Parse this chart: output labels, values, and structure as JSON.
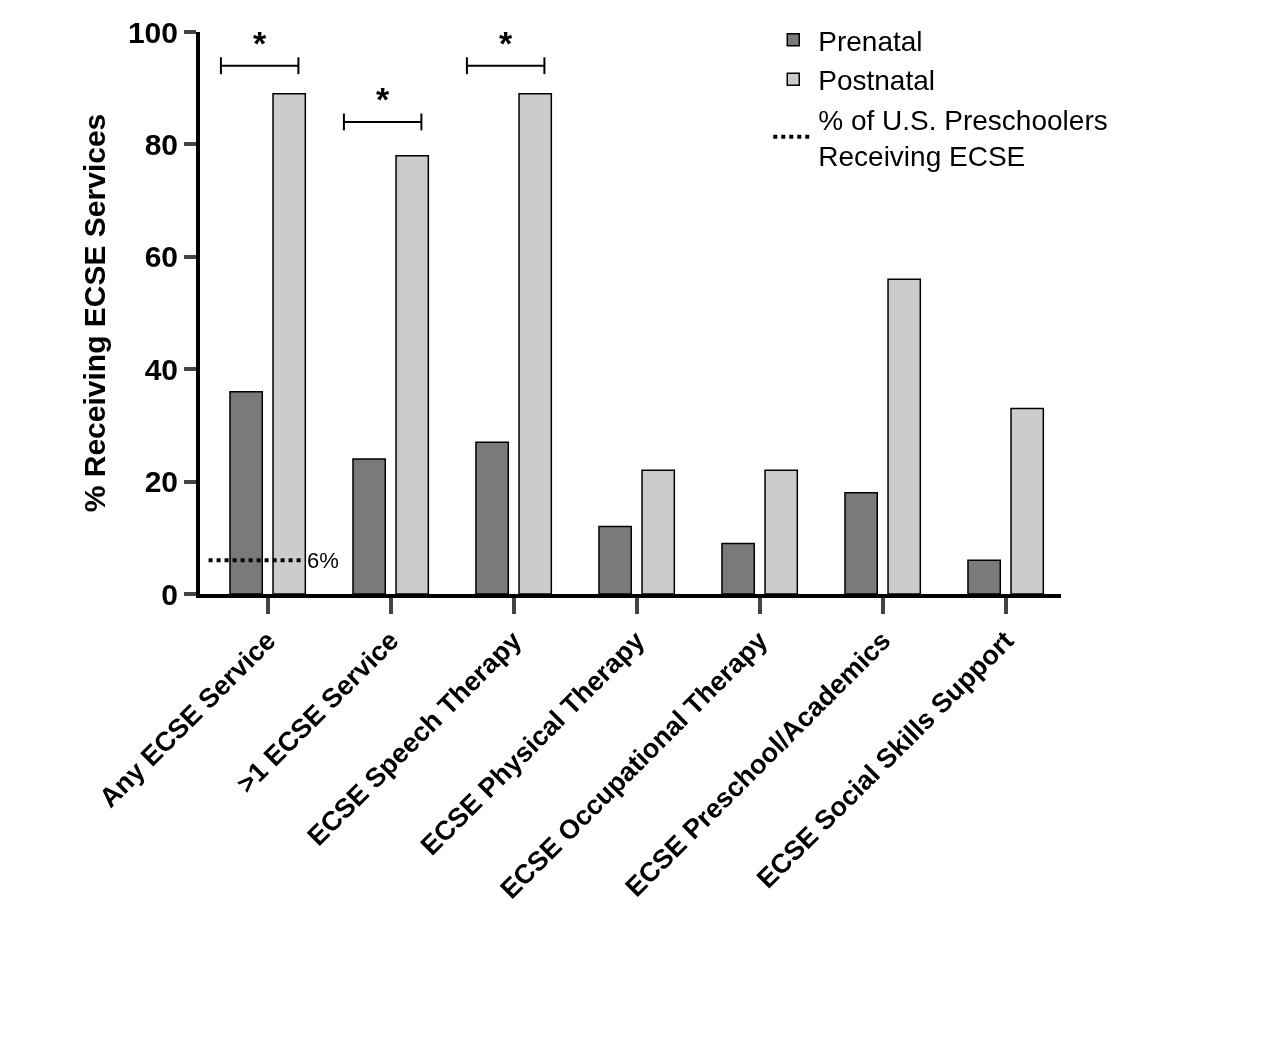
{
  "chart_data": {
    "type": "bar",
    "ylabel": "% Receiving ECSE Services",
    "categories": [
      "Any ECSE Service",
      ">1 ECSE Service",
      "ECSE Speech Therapy",
      "ECSE Physical Therapy",
      "ECSE Occupational Therapy",
      "ECSE Preschool/Academics",
      "ECSE Social Skills Support"
    ],
    "series": [
      {
        "name": "Prenatal",
        "color": "#7a7a7a",
        "values": [
          36,
          24,
          27,
          12,
          9,
          18,
          6
        ]
      },
      {
        "name": "Postnatal",
        "color": "#cccccc",
        "values": [
          89,
          78,
          89,
          22,
          22,
          56,
          33
        ]
      }
    ],
    "ylim": [
      0,
      100
    ],
    "yticks": [
      0,
      20,
      40,
      60,
      80,
      100
    ],
    "grid": false,
    "legend": "top right",
    "ref_lines": [
      {
        "axis": "y",
        "value": 6,
        "label": "% of U.S. Preschoolers Receiving ECSE",
        "line_style": "dotted",
        "color": "#000000"
      }
    ],
    "annotations": [
      "*",
      "*",
      "*",
      {
        "text": "6%",
        "x": "Any ECSE Service",
        "y": 6
      }
    ]
  }
}
